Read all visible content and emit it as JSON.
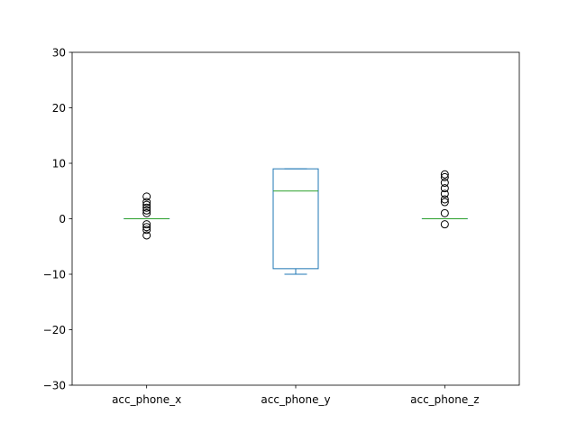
{
  "chart_data": {
    "type": "box",
    "categories": [
      "acc_phone_x",
      "acc_phone_y",
      "acc_phone_z"
    ],
    "ylim": [
      -30,
      30
    ],
    "yticks": [
      -30,
      -20,
      -10,
      0,
      10,
      20,
      30
    ],
    "ytick_labels": [
      "−30",
      "−20",
      "−10",
      "0",
      "10",
      "20",
      "30"
    ],
    "grid": false,
    "title": "",
    "xlabel": "",
    "ylabel": "",
    "boxes": [
      {
        "category": "acc_phone_x",
        "whislo": 0,
        "q1": 0,
        "median": 0,
        "q3": 0,
        "whishi": 0,
        "fliers": [
          4,
          3,
          2.5,
          2,
          1.5,
          1,
          -1,
          -1.5,
          -2,
          -3
        ]
      },
      {
        "category": "acc_phone_y",
        "whislo": -10,
        "q1": -9,
        "median": 5,
        "q3": 9,
        "whishi": 9,
        "fliers": []
      },
      {
        "category": "acc_phone_z",
        "whislo": 0,
        "q1": 0,
        "median": 0,
        "q3": 0,
        "whishi": 0,
        "fliers": [
          8,
          7.5,
          6.5,
          5.5,
          4.5,
          3.5,
          3,
          1,
          -1
        ]
      }
    ],
    "colors": {
      "box": "#1f77b4",
      "median": "#2ca02c",
      "flier": "#000000",
      "axes": "#000000"
    }
  }
}
